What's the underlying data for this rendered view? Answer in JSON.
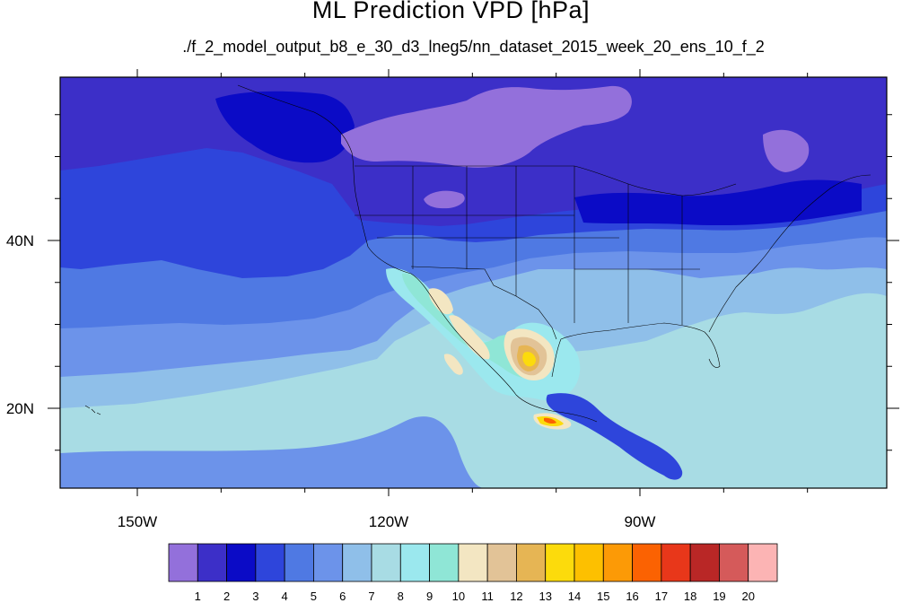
{
  "title": "ML Prediction VPD [hPa]",
  "subtitle": "./f_2_model_output_b8_e_30_d3_lneg5/nn_dataset_2015_week_20_ens_10_f_2",
  "lon_ticks": [
    {
      "label": "150W",
      "lon": -150
    },
    {
      "label": "120W",
      "lon": -120
    },
    {
      "label": "90W",
      "lon": -90
    }
  ],
  "lat_ticks": [
    {
      "label": "40N",
      "lat": 40
    },
    {
      "label": "20N",
      "lat": 20
    }
  ],
  "colorbar": {
    "labels": [
      "1",
      "2",
      "3",
      "4",
      "5",
      "6",
      "7",
      "8",
      "9",
      "10",
      "11",
      "12",
      "13",
      "14",
      "15",
      "16",
      "17",
      "18",
      "19",
      "20"
    ],
    "colors": [
      "#9370db",
      "#3c2fc8",
      "#0b0bc6",
      "#2e45db",
      "#4f79e3",
      "#6c93ea",
      "#8fbfe9",
      "#a8dce4",
      "#9be8ee",
      "#8fe6d6",
      "#f3e6c2",
      "#e2c397",
      "#e6b554",
      "#fcdb0c",
      "#fdc000",
      "#fc9a06",
      "#fb6202",
      "#e8371a",
      "#b92726",
      "#d55a5a",
      "#fcb4b4"
    ]
  },
  "colors": {
    "ocean_south": "#a8dce4",
    "border_lines": "#000000"
  }
}
